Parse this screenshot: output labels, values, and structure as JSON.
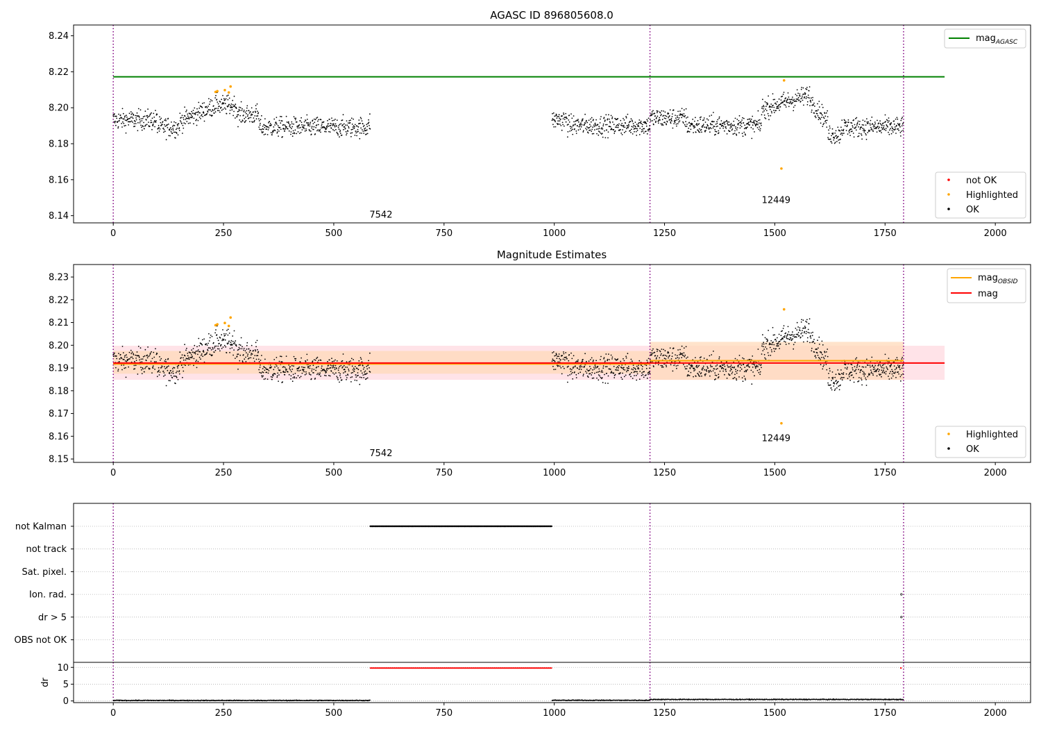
{
  "colors": {
    "agasc_line": "#008000",
    "obsid_line": "#FFA500",
    "mag_line": "#FF0000",
    "highlighted": "#FFA500",
    "not_ok": "#FF0000",
    "ok": "#000000",
    "obs_boundary": "#800080",
    "band_mag": "#FFC0CB",
    "band_obsid": "#FFDAB9"
  },
  "chart_data": [
    {
      "type": "scatter",
      "title": "AGASC ID 896805608.0",
      "xlim": [
        -90,
        2080
      ],
      "ylim": [
        8.136,
        8.246
      ],
      "xticks": [
        0,
        250,
        500,
        750,
        1000,
        1250,
        1500,
        1750,
        2000
      ],
      "xtick_labels": [
        "0",
        "250",
        "500",
        "750",
        "1000",
        "1250",
        "1500",
        "1750",
        "2000"
      ],
      "yticks": [
        8.14,
        8.16,
        8.18,
        8.2,
        8.22,
        8.24
      ],
      "ytick_labels": [
        "8.14",
        "8.16",
        "8.18",
        "8.20",
        "8.22",
        "8.24"
      ],
      "obs_boundaries": [
        0,
        1217,
        1792
      ],
      "obs_labels": [
        {
          "text": "7542",
          "x": 607,
          "y": 8.1405
        },
        {
          "text": "12449",
          "x": 1503,
          "y": 8.1485
        }
      ],
      "mag_agasc": {
        "name": "mag",
        "sub": "AGASC",
        "value": 8.2172,
        "x_range": [
          0,
          1885
        ]
      },
      "highlighted_points": [
        [
          232,
          8.2088
        ],
        [
          236,
          8.2092
        ],
        [
          253,
          8.2098
        ],
        [
          262,
          8.2085
        ],
        [
          266,
          8.2118
        ],
        [
          1515,
          8.1662
        ],
        [
          1521,
          8.2152
        ]
      ],
      "legend_line": [
        {
          "name": "mag",
          "sub": "AGASC"
        }
      ],
      "legend_points": [
        "not OK",
        "Highlighted",
        "OK"
      ]
    },
    {
      "type": "scatter",
      "title": "Magnitude Estimates",
      "xlim": [
        -90,
        2080
      ],
      "ylim": [
        8.1485,
        8.2355
      ],
      "xticks": [
        0,
        250,
        500,
        750,
        1000,
        1250,
        1500,
        1750,
        2000
      ],
      "xtick_labels": [
        "0",
        "250",
        "500",
        "750",
        "1000",
        "1250",
        "1500",
        "1750",
        "2000"
      ],
      "yticks": [
        8.15,
        8.16,
        8.17,
        8.18,
        8.19,
        8.2,
        8.21,
        8.22,
        8.23
      ],
      "ytick_labels": [
        "8.15",
        "8.16",
        "8.17",
        "8.18",
        "8.19",
        "8.20",
        "8.21",
        "8.22",
        "8.23"
      ],
      "obs_boundaries": [
        0,
        1217,
        1792
      ],
      "obs_labels": [
        {
          "text": "7542",
          "x": 607,
          "y": 8.1525
        },
        {
          "text": "12449",
          "x": 1503,
          "y": 8.159
        }
      ],
      "mag": {
        "name": "mag",
        "value": 8.1922,
        "x_range": [
          0,
          1885
        ],
        "band": [
          8.1848,
          8.1998
        ]
      },
      "mag_obsid": [
        {
          "value": 8.1918,
          "x_range": [
            0,
            1217
          ],
          "band": [
            8.1875,
            8.1975
          ]
        },
        {
          "value": 8.1932,
          "x_range": [
            1217,
            1792
          ],
          "band": [
            8.1848,
            8.2015
          ]
        }
      ],
      "highlighted_points": [
        [
          232,
          8.2088
        ],
        [
          236,
          8.2092
        ],
        [
          253,
          8.2098
        ],
        [
          262,
          8.2085
        ],
        [
          266,
          8.2122
        ],
        [
          1515,
          8.1657
        ],
        [
          1521,
          8.2158
        ]
      ],
      "legend_line": [
        {
          "name": "mag",
          "sub": "OBSID"
        },
        {
          "name": "mag",
          "sub": ""
        }
      ],
      "legend_points": [
        "Highlighted",
        "OK"
      ]
    },
    {
      "type": "scatter",
      "title": "",
      "xlim": [
        -90,
        2080
      ],
      "categories": [
        "not Kalman",
        "not track",
        "Sat. pixel.",
        "Ion. rad.",
        "dr > 5",
        "OBS not OK"
      ],
      "flag_runs": [
        {
          "category": "not Kalman",
          "x_range": [
            583,
            995
          ]
        }
      ],
      "flag_points": [
        {
          "category": "Ion. rad.",
          "x": 1787
        },
        {
          "category": "dr > 5",
          "x": 1787
        }
      ]
    },
    {
      "type": "scatter",
      "title": "",
      "ylabel": "dr",
      "xlim": [
        -90,
        2080
      ],
      "ylim": [
        -0.5,
        11.5
      ],
      "xticks": [
        0,
        250,
        500,
        750,
        1000,
        1250,
        1500,
        1750,
        2000
      ],
      "xtick_labels": [
        "0",
        "250",
        "500",
        "750",
        "1000",
        "1250",
        "1500",
        "1750",
        "2000"
      ],
      "yticks": [
        0,
        5,
        10
      ],
      "ytick_labels": [
        "0",
        "5",
        "10"
      ],
      "obs_boundaries": [
        0,
        1217,
        1792
      ],
      "not_ok_runs": [
        {
          "x_range": [
            583,
            995
          ],
          "value": 9.8
        }
      ],
      "not_ok_points": [
        [
          1786,
          9.8
        ]
      ],
      "ok_segments": [
        {
          "x_range": [
            0,
            583
          ],
          "value": 0.15
        },
        {
          "x_range": [
            995,
            1217
          ],
          "value": 0.2
        },
        {
          "x_range": [
            1217,
            1792
          ],
          "value": 0.45
        }
      ]
    }
  ]
}
